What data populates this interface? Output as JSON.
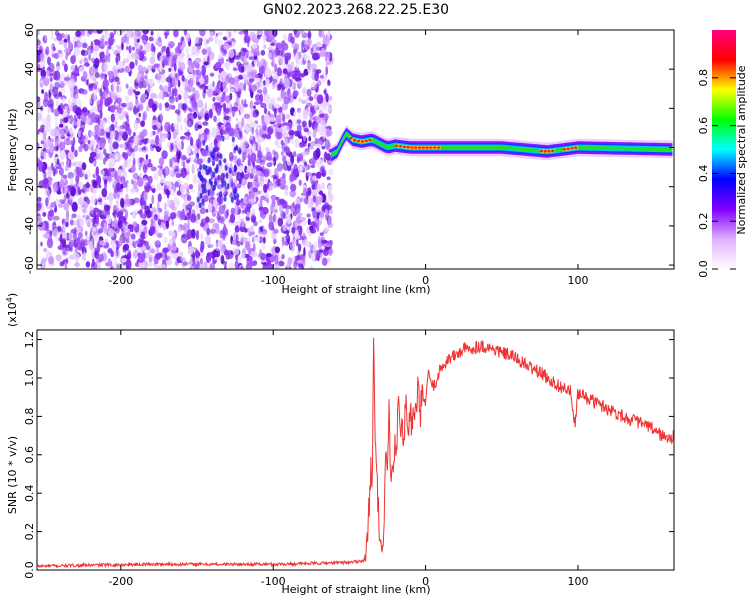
{
  "figure": {
    "title": "GN02.2023.268.22.25.E30"
  },
  "chart_data": [
    {
      "type": "heatmap",
      "title": "GN02.2023.268.22.25.E30",
      "xlabel": "Height of straight line (km)",
      "ylabel": "Frequency (Hz)",
      "xlim": [
        -255,
        163
      ],
      "ylim": [
        -62,
        60
      ],
      "xticks": [
        -200,
        -100,
        0,
        100
      ],
      "xtick_labels": [
        "-200",
        "-100",
        "0",
        "100"
      ],
      "yticks": [
        60,
        40,
        20,
        0,
        -20,
        -40,
        -60
      ],
      "ytick_labels": [
        "60",
        "40",
        "20",
        "0",
        "-20",
        "-40",
        "-60"
      ],
      "noise_region_x": [
        -255,
        -62
      ],
      "signal_band": {
        "x_start": -62,
        "x_end": 163,
        "center_freq_hz": [
          [
            -62,
            -4
          ],
          [
            -58,
            -2
          ],
          [
            -55,
            3
          ],
          [
            -52,
            7
          ],
          [
            -48,
            4
          ],
          [
            -42,
            3
          ],
          [
            -35,
            4
          ],
          [
            -30,
            2
          ],
          [
            -25,
            0
          ],
          [
            -20,
            1
          ],
          [
            -10,
            0
          ],
          [
            0,
            0
          ],
          [
            20,
            0
          ],
          [
            50,
            0
          ],
          [
            80,
            -2
          ],
          [
            100,
            0
          ],
          [
            163,
            -1
          ]
        ],
        "peak_amplitude_segments": [
          [
            -50,
            -35
          ],
          [
            -20,
            10
          ],
          [
            75,
            85
          ],
          [
            90,
            100
          ]
        ]
      },
      "colorbar": {
        "label": "Normalized spectral amplitude",
        "range": [
          0,
          1
        ],
        "ticks": [
          0.0,
          0.2,
          0.4,
          0.6,
          0.8
        ],
        "tick_labels": [
          "0.0",
          "0.2",
          "0.4",
          "0.6",
          "0.8"
        ],
        "colors": [
          "#ffffff",
          "#e0b0ff",
          "#8000ff",
          "#0000ff",
          "#00ffff",
          "#00ff00",
          "#ffff00",
          "#ff0000",
          "#ff0080"
        ]
      },
      "grid": false
    },
    {
      "type": "line",
      "xlabel": "Height of straight line (km)",
      "ylabel": "SNR (10 * v/v)",
      "scale_label": "(x10",
      "scale_exponent": "4",
      "scale_close": ")",
      "xlim": [
        -255,
        163
      ],
      "ylim": [
        0,
        1.25
      ],
      "xticks": [
        -200,
        -100,
        0,
        100
      ],
      "xtick_labels": [
        "-200",
        "-100",
        "0",
        "100"
      ],
      "yticks": [
        0.0,
        0.2,
        0.4,
        0.6,
        0.8,
        1.0,
        1.2
      ],
      "ytick_labels": [
        "0.0",
        "0.2",
        "0.4",
        "0.6",
        "0.8",
        "1.0",
        "1.2"
      ],
      "line_color": "#ee3333",
      "series": [
        {
          "x": [
            -255,
            -220,
            -180,
            -140,
            -100,
            -70,
            -50,
            -40,
            -38,
            -36,
            -35,
            -34,
            -33,
            -32,
            -31,
            -30,
            -29,
            -28,
            -27,
            -26,
            -25,
            -24,
            -23,
            -22,
            -21,
            -20,
            -19,
            -18,
            -17,
            -16,
            -15,
            -14,
            -13,
            -12,
            -11,
            -10,
            -9,
            -8,
            -7,
            -6,
            -5,
            -4,
            -3,
            -2,
            -1,
            0,
            2,
            5,
            10,
            15,
            20,
            25,
            30,
            35,
            40,
            45,
            50,
            55,
            60,
            65,
            70,
            75,
            80,
            85,
            90,
            95,
            98,
            100,
            105,
            110,
            115,
            120,
            125,
            130,
            135,
            140,
            145,
            150,
            155,
            160,
            163
          ],
          "y": [
            0.02,
            0.025,
            0.03,
            0.03,
            0.03,
            0.035,
            0.04,
            0.05,
            0.15,
            0.55,
            0.5,
            1.25,
            0.7,
            0.45,
            0.3,
            0.1,
            0.12,
            0.1,
            0.3,
            0.6,
            0.5,
            0.85,
            0.45,
            0.5,
            0.45,
            0.7,
            0.6,
            0.92,
            0.7,
            0.75,
            0.75,
            0.68,
            0.9,
            0.75,
            0.72,
            0.85,
            0.75,
            0.78,
            0.85,
            0.8,
            0.98,
            0.8,
            0.85,
            0.9,
            0.85,
            0.9,
            1.02,
            0.95,
            1.05,
            1.1,
            1.12,
            1.15,
            1.15,
            1.17,
            1.16,
            1.15,
            1.13,
            1.12,
            1.1,
            1.07,
            1.05,
            1.03,
            1.0,
            0.97,
            0.95,
            0.93,
            0.75,
            0.92,
            0.9,
            0.88,
            0.86,
            0.84,
            0.82,
            0.8,
            0.78,
            0.77,
            0.75,
            0.73,
            0.7,
            0.68,
            0.7
          ]
        }
      ],
      "grid": false
    }
  ]
}
